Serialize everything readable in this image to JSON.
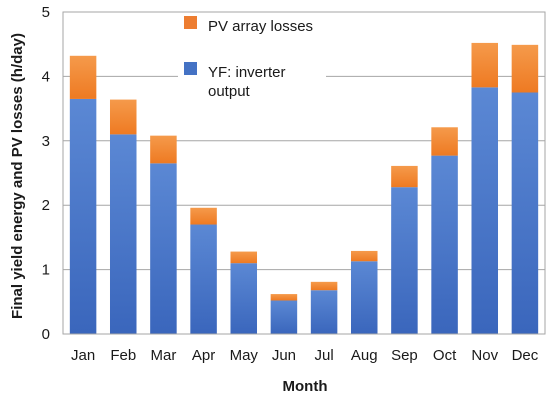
{
  "chart_data": {
    "type": "bar",
    "stacked": true,
    "xlabel": "Month",
    "ylabel": "Final yield energy and PV losses (h/day)",
    "ylim": [
      0,
      5
    ],
    "yticks": [
      "0",
      "1",
      "2",
      "3",
      "4",
      "5"
    ],
    "grid": "horizontal",
    "legend_position": "top-center",
    "categories": [
      "Jan",
      "Feb",
      "Mar",
      "Apr",
      "May",
      "Jun",
      "Jul",
      "Aug",
      "Sep",
      "Oct",
      "Nov",
      "Dec"
    ],
    "series": [
      {
        "name": "YF: inverter output",
        "color": "#4472C4",
        "values": [
          3.65,
          3.1,
          2.65,
          1.7,
          1.1,
          0.52,
          0.68,
          1.13,
          2.28,
          2.77,
          3.83,
          3.75
        ]
      },
      {
        "name": "PV array losses",
        "color": "#ED7D31",
        "values": [
          0.67,
          0.54,
          0.43,
          0.26,
          0.18,
          0.1,
          0.13,
          0.16,
          0.33,
          0.44,
          0.69,
          0.74
        ]
      }
    ],
    "legend": [
      {
        "label_lines": [
          "PV array losses"
        ],
        "color": "#ED7D31",
        "icon": "orange-square"
      },
      {
        "label_lines": [
          "YF: inverter",
          "output"
        ],
        "color": "#4472C4",
        "icon": "blue-square"
      }
    ]
  }
}
